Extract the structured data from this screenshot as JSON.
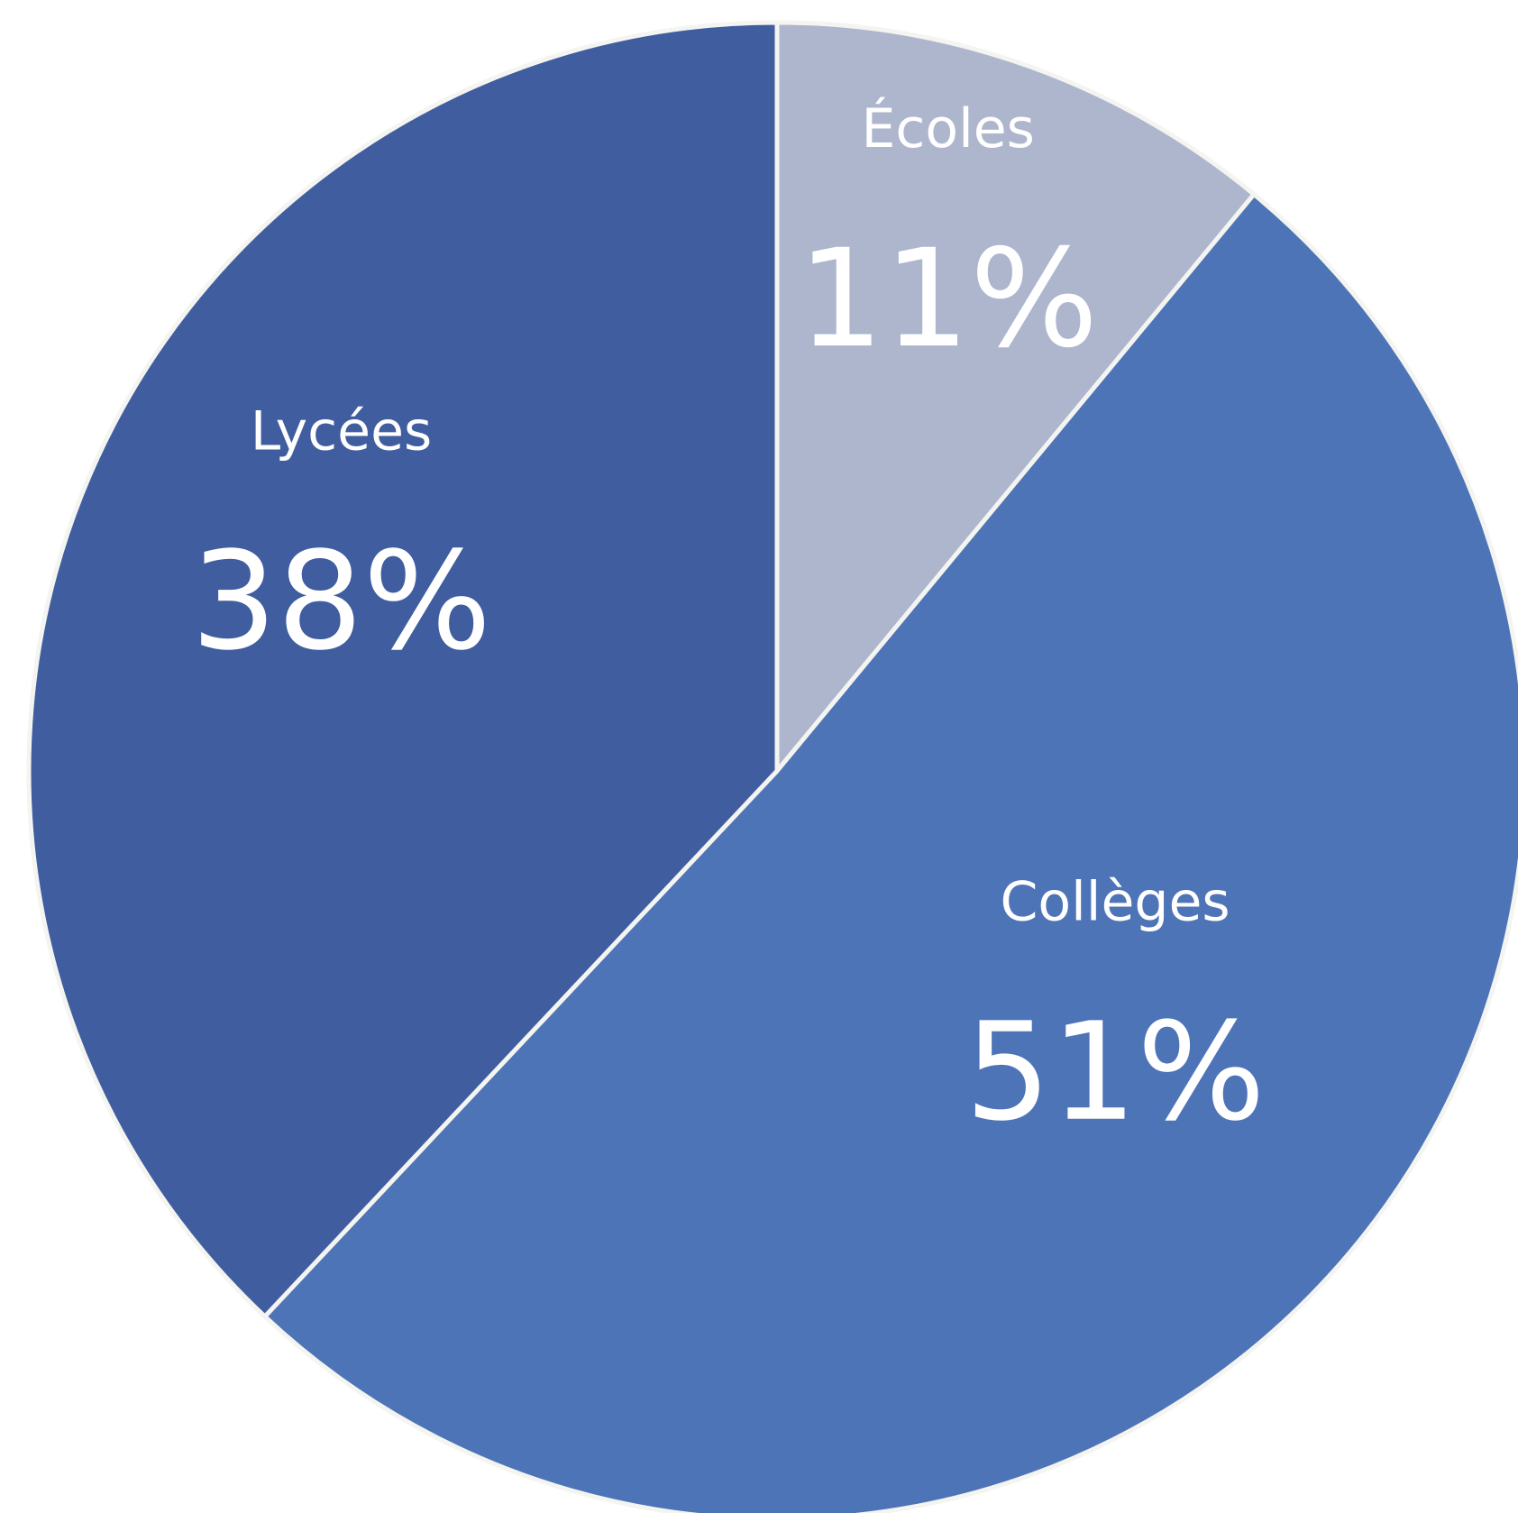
{
  "chart_data": {
    "type": "pie",
    "start_angle_deg": 0,
    "direction": "clockwise",
    "slices": [
      {
        "label": "Écoles",
        "value": 11,
        "value_label": "11%",
        "color": "#adb6cd"
      },
      {
        "label": "Collèges",
        "value": 51,
        "value_label": "51%",
        "color": "#4e74b8"
      },
      {
        "label": "Lycées",
        "value": 38,
        "value_label": "38%",
        "color": "#405da0"
      }
    ],
    "separator_color": "#f4f4f1",
    "label_color": "#ffffff"
  }
}
